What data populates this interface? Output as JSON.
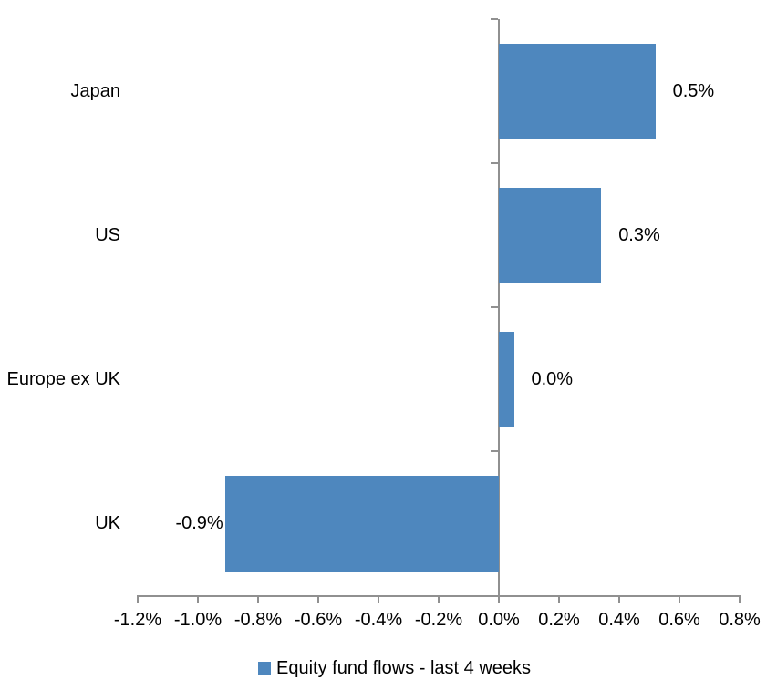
{
  "chart": {
    "colors": {
      "bar": "#4E87BE",
      "axis": "#909090",
      "text": "#000000",
      "background": "#FFFFFF"
    }
  },
  "chart_data": {
    "type": "bar",
    "orientation": "horizontal",
    "title": "",
    "xlabel": "",
    "ylabel": "",
    "categories": [
      "Japan",
      "US",
      "Europe ex UK",
      "UK"
    ],
    "values": [
      0.5,
      0.3,
      0.0,
      -0.9
    ],
    "value_labels": [
      "0.5%",
      "0.3%",
      "0.0%",
      "-0.9%"
    ],
    "bar_extents_pct": [
      0.52,
      0.34,
      0.05,
      -0.91
    ],
    "series_name": "Equity fund flows - last 4 weeks",
    "x_ticks": [
      -1.2,
      -1.0,
      -0.8,
      -0.6,
      -0.4,
      -0.2,
      0.0,
      0.2,
      0.4,
      0.6,
      0.8
    ],
    "x_tick_labels": [
      "-1.2%",
      "-1.0%",
      "-0.8%",
      "-0.6%",
      "-0.4%",
      "-0.2%",
      "0.0%",
      "0.2%",
      "0.4%",
      "0.6%",
      "0.8%"
    ],
    "xlim": [
      -1.2,
      0.8
    ],
    "grid": false,
    "legend_position": "bottom"
  }
}
